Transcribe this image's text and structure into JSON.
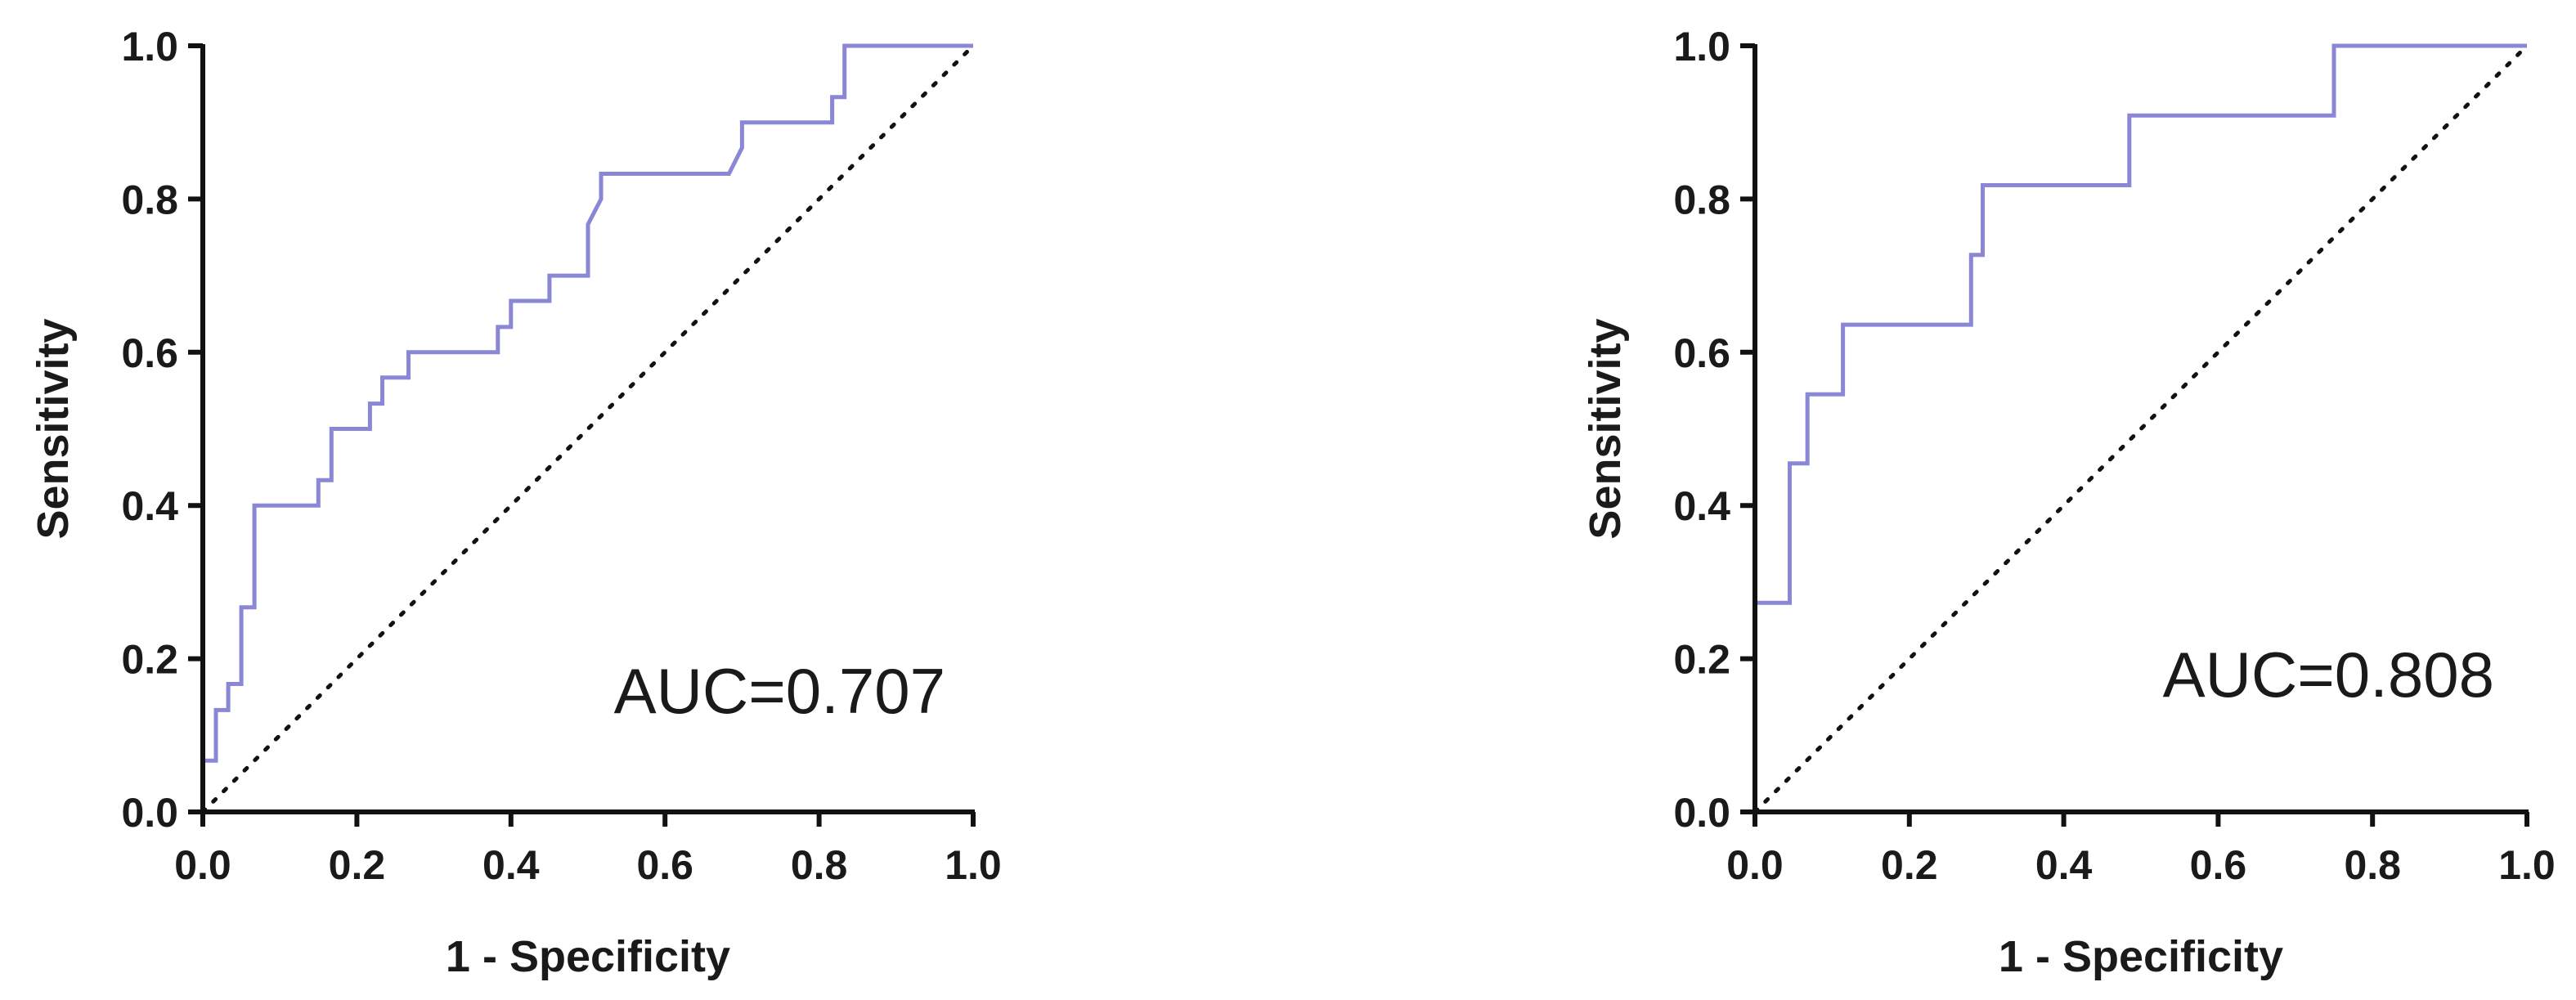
{
  "chart_data": [
    {
      "type": "line",
      "title": "",
      "xlabel": "1 - Specificity",
      "ylabel": "Sensitivity",
      "xlim": [
        0,
        1
      ],
      "ylim": [
        0,
        1
      ],
      "xticks": [
        "0.0",
        "0.2",
        "0.4",
        "0.6",
        "0.8",
        "1.0"
      ],
      "yticks": [
        "0.0",
        "0.2",
        "0.4",
        "0.6",
        "0.8",
        "1.0"
      ],
      "grid": false,
      "annotation": "AUC=0.707",
      "series": [
        {
          "color": "#8a87d6",
          "points": [
            [
              0.0,
              0.0
            ],
            [
              0.0,
              0.067
            ],
            [
              0.017,
              0.067
            ],
            [
              0.017,
              0.133
            ],
            [
              0.033,
              0.133
            ],
            [
              0.033,
              0.167
            ],
            [
              0.05,
              0.167
            ],
            [
              0.05,
              0.267
            ],
            [
              0.067,
              0.267
            ],
            [
              0.067,
              0.4
            ],
            [
              0.15,
              0.4
            ],
            [
              0.15,
              0.433
            ],
            [
              0.167,
              0.433
            ],
            [
              0.167,
              0.5
            ],
            [
              0.217,
              0.5
            ],
            [
              0.217,
              0.533
            ],
            [
              0.233,
              0.533
            ],
            [
              0.233,
              0.567
            ],
            [
              0.267,
              0.567
            ],
            [
              0.267,
              0.6
            ],
            [
              0.383,
              0.6
            ],
            [
              0.383,
              0.633
            ],
            [
              0.4,
              0.633
            ],
            [
              0.4,
              0.667
            ],
            [
              0.45,
              0.667
            ],
            [
              0.45,
              0.7
            ],
            [
              0.5,
              0.7
            ],
            [
              0.5,
              0.767
            ],
            [
              0.517,
              0.8
            ],
            [
              0.517,
              0.833
            ],
            [
              0.683,
              0.833
            ],
            [
              0.7,
              0.867
            ],
            [
              0.7,
              0.9
            ],
            [
              0.817,
              0.9
            ],
            [
              0.817,
              0.933
            ],
            [
              0.833,
              0.933
            ],
            [
              0.833,
              1.0
            ],
            [
              1.0,
              1.0
            ]
          ]
        },
        {
          "name": "",
          "style": "dotted",
          "color": "#111111",
          "points": [
            [
              0,
              0
            ],
            [
              1,
              1
            ]
          ]
        }
      ]
    },
    {
      "type": "line",
      "title": "",
      "xlabel": "1 - Specificity",
      "ylabel": "Sensitivity",
      "xlim": [
        0,
        1
      ],
      "ylim": [
        0,
        1
      ],
      "xticks": [
        "0.0",
        "0.2",
        "0.4",
        "0.6",
        "0.8",
        "1.0"
      ],
      "yticks": [
        "0.0",
        "0.2",
        "0.4",
        "0.6",
        "0.8",
        "1.0"
      ],
      "grid": false,
      "annotation": "AUC=0.808",
      "series": [
        {
          "color": "#8a87d6",
          "points": [
            [
              0.0,
              0.0
            ],
            [
              0.0,
              0.273
            ],
            [
              0.045,
              0.273
            ],
            [
              0.045,
              0.455
            ],
            [
              0.068,
              0.455
            ],
            [
              0.068,
              0.545
            ],
            [
              0.114,
              0.545
            ],
            [
              0.114,
              0.636
            ],
            [
              0.28,
              0.636
            ],
            [
              0.28,
              0.727
            ],
            [
              0.295,
              0.727
            ],
            [
              0.295,
              0.818
            ],
            [
              0.485,
              0.818
            ],
            [
              0.485,
              0.909
            ],
            [
              0.75,
              0.909
            ],
            [
              0.75,
              1.0
            ],
            [
              1.0,
              1.0
            ]
          ]
        },
        {
          "name": "",
          "style": "dotted",
          "color": "#111111",
          "points": [
            [
              0,
              0
            ],
            [
              1,
              1
            ]
          ]
        }
      ]
    }
  ]
}
